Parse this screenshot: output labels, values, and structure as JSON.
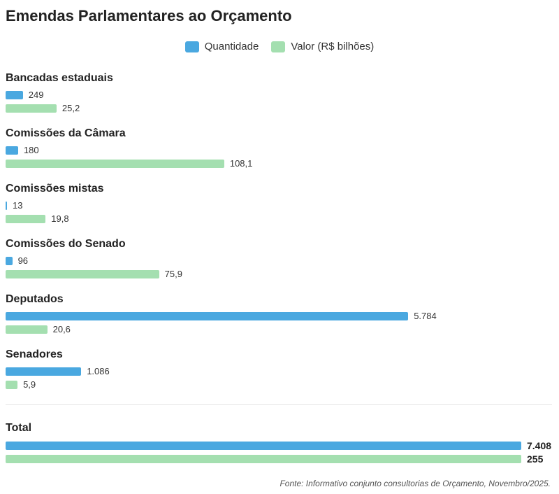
{
  "title": "Emendas Parlamentares ao Orçamento",
  "source": "Fonte: Informativo conjunto consultorias de Orçamento, Novembro/2025.",
  "colors": {
    "quantidade": "#4aa8e0",
    "valor": "#a4dfb0"
  },
  "legend": [
    {
      "label": "Quantidade",
      "color": "#4aa8e0"
    },
    {
      "label": "Valor (R$ bilhões)",
      "color": "#a4dfb0"
    }
  ],
  "chart_data": {
    "type": "bar",
    "orientation": "horizontal",
    "title": "Emendas Parlamentares ao Orçamento",
    "categories": [
      "Bancadas estaduais",
      "Comissões da Câmara",
      "Comissões mistas",
      "Comissões do Senado",
      "Deputados",
      "Senadores"
    ],
    "series": [
      {
        "name": "Quantidade",
        "values": [
          249,
          180,
          13,
          96,
          5784,
          1086
        ],
        "labels": [
          "249",
          "180",
          "13",
          "96",
          "5.784",
          "1.086"
        ]
      },
      {
        "name": "Valor (R$ bilhões)",
        "values": [
          25.2,
          108.1,
          19.8,
          75.9,
          20.6,
          5.9
        ],
        "labels": [
          "25,2",
          "108,1",
          "19,8",
          "75,9",
          "20,6",
          "5,9"
        ]
      }
    ],
    "total": {
      "label": "Total",
      "quantidade": 7408,
      "quantidade_label": "7.408",
      "valor": 255,
      "valor_label": "255"
    },
    "legend_position": "top-center",
    "grid": false
  }
}
